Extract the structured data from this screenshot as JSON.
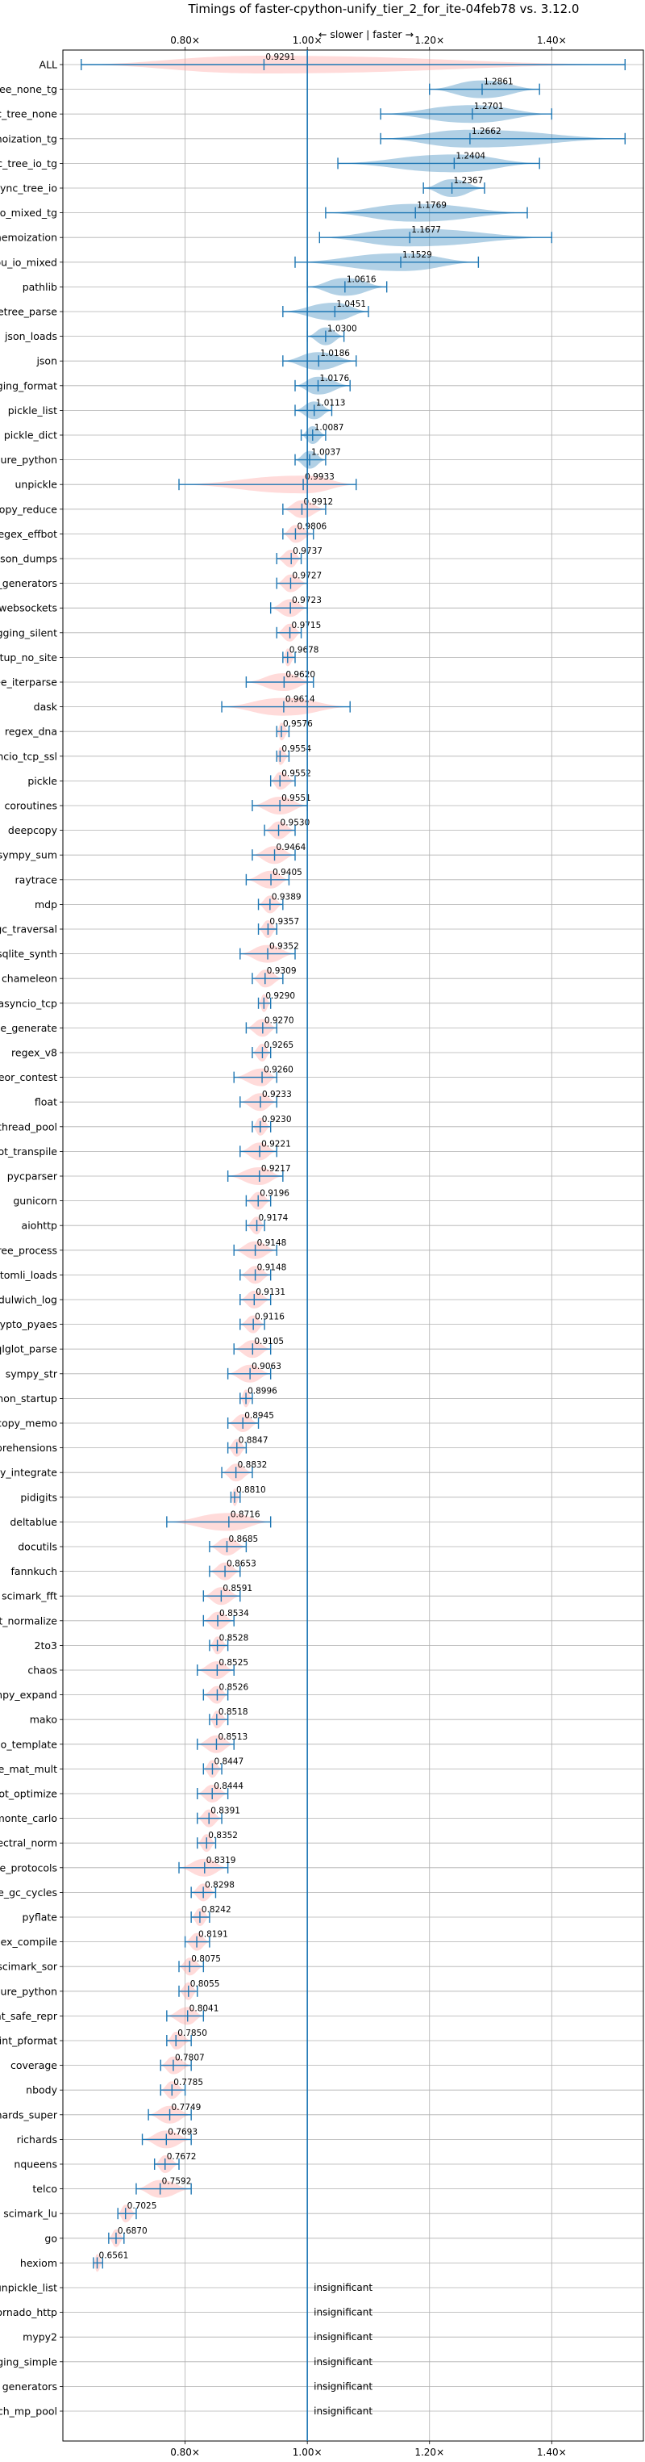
{
  "chart_data": {
    "type": "violin",
    "title": "Timings of faster-cpython-unify_tier_2_for_ite-04feb78 vs. 3.12.0",
    "direction_label": "← slower | faster →",
    "xlim": [
      0.6,
      1.55
    ],
    "x_ticks": [
      {
        "value": 0.8,
        "label": "0.80×"
      },
      {
        "value": 1.0,
        "label": "1.00×"
      },
      {
        "value": 1.2,
        "label": "1.20×"
      },
      {
        "value": 1.4,
        "label": "1.40×"
      }
    ],
    "grid": true,
    "colors": {
      "faster": "#1f77b4",
      "slower": "#ff9896",
      "line": "#1f77b4",
      "axis": "#000000"
    },
    "benchmarks": [
      {
        "name": "ALL",
        "mean": 0.9291,
        "lo": 0.63,
        "hi": 1.52
      },
      {
        "name": "async_tree_none_tg",
        "mean": 1.2861,
        "lo": 1.2,
        "hi": 1.38
      },
      {
        "name": "async_tree_none",
        "mean": 1.2701,
        "lo": 1.12,
        "hi": 1.4
      },
      {
        "name": "async_tree_memoization_tg",
        "mean": 1.2662,
        "lo": 1.12,
        "hi": 1.52
      },
      {
        "name": "async_tree_io_tg",
        "mean": 1.2404,
        "lo": 1.05,
        "hi": 1.38
      },
      {
        "name": "async_tree_io",
        "mean": 1.2367,
        "lo": 1.19,
        "hi": 1.29
      },
      {
        "name": "async_tree_cpu_io_mixed_tg",
        "mean": 1.1769,
        "lo": 1.03,
        "hi": 1.36
      },
      {
        "name": "async_tree_memoization",
        "mean": 1.1677,
        "lo": 1.02,
        "hi": 1.4
      },
      {
        "name": "async_tree_cpu_io_mixed",
        "mean": 1.1529,
        "lo": 0.98,
        "hi": 1.28
      },
      {
        "name": "pathlib",
        "mean": 1.0616,
        "lo": 1.0,
        "hi": 1.13
      },
      {
        "name": "xml_etree_parse",
        "mean": 1.0451,
        "lo": 0.96,
        "hi": 1.1
      },
      {
        "name": "json_loads",
        "mean": 1.03,
        "lo": 1.0,
        "hi": 1.06
      },
      {
        "name": "json",
        "mean": 1.0186,
        "lo": 0.96,
        "hi": 1.08
      },
      {
        "name": "logging_format",
        "mean": 1.0176,
        "lo": 0.98,
        "hi": 1.07
      },
      {
        "name": "pickle_list",
        "mean": 1.0113,
        "lo": 0.98,
        "hi": 1.04
      },
      {
        "name": "pickle_dict",
        "mean": 1.0087,
        "lo": 0.99,
        "hi": 1.03
      },
      {
        "name": "pickle_pure_python",
        "mean": 1.0037,
        "lo": 0.98,
        "hi": 1.03
      },
      {
        "name": "unpickle",
        "mean": 0.9933,
        "lo": 0.79,
        "hi": 1.08
      },
      {
        "name": "deepcopy_reduce",
        "mean": 0.9912,
        "lo": 0.96,
        "hi": 1.03
      },
      {
        "name": "regex_effbot",
        "mean": 0.9806,
        "lo": 0.96,
        "hi": 1.01
      },
      {
        "name": "json_dumps",
        "mean": 0.9737,
        "lo": 0.95,
        "hi": 0.99
      },
      {
        "name": "async_generators",
        "mean": 0.9727,
        "lo": 0.95,
        "hi": 1.0
      },
      {
        "name": "asyncio_websockets",
        "mean": 0.9723,
        "lo": 0.94,
        "hi": 1.0
      },
      {
        "name": "logging_silent",
        "mean": 0.9715,
        "lo": 0.95,
        "hi": 0.99
      },
      {
        "name": "python_startup_no_site",
        "mean": 0.9678,
        "lo": 0.96,
        "hi": 0.98
      },
      {
        "name": "xml_etree_iterparse",
        "mean": 0.962,
        "lo": 0.9,
        "hi": 1.01
      },
      {
        "name": "dask",
        "mean": 0.9614,
        "lo": 0.86,
        "hi": 1.07
      },
      {
        "name": "regex_dna",
        "mean": 0.9576,
        "lo": 0.95,
        "hi": 0.97
      },
      {
        "name": "asyncio_tcp_ssl",
        "mean": 0.9554,
        "lo": 0.95,
        "hi": 0.97
      },
      {
        "name": "pickle",
        "mean": 0.9552,
        "lo": 0.94,
        "hi": 0.98
      },
      {
        "name": "coroutines",
        "mean": 0.9551,
        "lo": 0.91,
        "hi": 1.0
      },
      {
        "name": "deepcopy",
        "mean": 0.953,
        "lo": 0.93,
        "hi": 0.98
      },
      {
        "name": "sympy_sum",
        "mean": 0.9464,
        "lo": 0.91,
        "hi": 0.98
      },
      {
        "name": "raytrace",
        "mean": 0.9405,
        "lo": 0.9,
        "hi": 0.97
      },
      {
        "name": "mdp",
        "mean": 0.9389,
        "lo": 0.92,
        "hi": 0.96
      },
      {
        "name": "gc_traversal",
        "mean": 0.9357,
        "lo": 0.92,
        "hi": 0.95
      },
      {
        "name": "sqlite_synth",
        "mean": 0.9352,
        "lo": 0.89,
        "hi": 0.98
      },
      {
        "name": "chameleon",
        "mean": 0.9309,
        "lo": 0.91,
        "hi": 0.96
      },
      {
        "name": "asyncio_tcp",
        "mean": 0.929,
        "lo": 0.92,
        "hi": 0.94
      },
      {
        "name": "xml_etree_generate",
        "mean": 0.927,
        "lo": 0.9,
        "hi": 0.95
      },
      {
        "name": "regex_v8",
        "mean": 0.9265,
        "lo": 0.91,
        "hi": 0.94
      },
      {
        "name": "meteor_contest",
        "mean": 0.926,
        "lo": 0.88,
        "hi": 0.95
      },
      {
        "name": "float",
        "mean": 0.9233,
        "lo": 0.89,
        "hi": 0.95
      },
      {
        "name": "bench_thread_pool",
        "mean": 0.923,
        "lo": 0.91,
        "hi": 0.94
      },
      {
        "name": "sqlglot_transpile",
        "mean": 0.9221,
        "lo": 0.89,
        "hi": 0.95
      },
      {
        "name": "pycparser",
        "mean": 0.9217,
        "lo": 0.87,
        "hi": 0.96
      },
      {
        "name": "gunicorn",
        "mean": 0.9196,
        "lo": 0.9,
        "hi": 0.94
      },
      {
        "name": "aiohttp",
        "mean": 0.9174,
        "lo": 0.9,
        "hi": 0.93
      },
      {
        "name": "xml_etree_process",
        "mean": 0.9148,
        "lo": 0.88,
        "hi": 0.95
      },
      {
        "name": "tomli_loads",
        "mean": 0.9148,
        "lo": 0.89,
        "hi": 0.94
      },
      {
        "name": "dulwich_log",
        "mean": 0.9131,
        "lo": 0.89,
        "hi": 0.94
      },
      {
        "name": "crypto_pyaes",
        "mean": 0.9116,
        "lo": 0.89,
        "hi": 0.93
      },
      {
        "name": "sqlglot_parse",
        "mean": 0.9105,
        "lo": 0.88,
        "hi": 0.94
      },
      {
        "name": "sympy_str",
        "mean": 0.9063,
        "lo": 0.87,
        "hi": 0.94
      },
      {
        "name": "python_startup",
        "mean": 0.8996,
        "lo": 0.89,
        "hi": 0.91
      },
      {
        "name": "deepcopy_memo",
        "mean": 0.8945,
        "lo": 0.87,
        "hi": 0.92
      },
      {
        "name": "comprehensions",
        "mean": 0.8847,
        "lo": 0.87,
        "hi": 0.9
      },
      {
        "name": "sympy_integrate",
        "mean": 0.8832,
        "lo": 0.86,
        "hi": 0.91
      },
      {
        "name": "pidigits",
        "mean": 0.881,
        "lo": 0.875,
        "hi": 0.89
      },
      {
        "name": "deltablue",
        "mean": 0.8716,
        "lo": 0.77,
        "hi": 0.94
      },
      {
        "name": "docutils",
        "mean": 0.8685,
        "lo": 0.84,
        "hi": 0.9
      },
      {
        "name": "fannkuch",
        "mean": 0.8653,
        "lo": 0.84,
        "hi": 0.89
      },
      {
        "name": "scimark_fft",
        "mean": 0.8591,
        "lo": 0.83,
        "hi": 0.89
      },
      {
        "name": "sqlglot_normalize",
        "mean": 0.8534,
        "lo": 0.83,
        "hi": 0.88
      },
      {
        "name": "2to3",
        "mean": 0.8528,
        "lo": 0.84,
        "hi": 0.87
      },
      {
        "name": "chaos",
        "mean": 0.8525,
        "lo": 0.82,
        "hi": 0.88
      },
      {
        "name": "sympy_expand",
        "mean": 0.8526,
        "lo": 0.83,
        "hi": 0.87
      },
      {
        "name": "mako",
        "mean": 0.8518,
        "lo": 0.84,
        "hi": 0.87
      },
      {
        "name": "django_template",
        "mean": 0.8513,
        "lo": 0.82,
        "hi": 0.88
      },
      {
        "name": "scimark_sparse_mat_mult",
        "mean": 0.8447,
        "lo": 0.83,
        "hi": 0.86
      },
      {
        "name": "sqlglot_optimize",
        "mean": 0.8444,
        "lo": 0.82,
        "hi": 0.87
      },
      {
        "name": "scimark_monte_carlo",
        "mean": 0.8391,
        "lo": 0.82,
        "hi": 0.86
      },
      {
        "name": "spectral_norm",
        "mean": 0.8352,
        "lo": 0.82,
        "hi": 0.85
      },
      {
        "name": "typing_runtime_protocols",
        "mean": 0.8319,
        "lo": 0.79,
        "hi": 0.87
      },
      {
        "name": "create_gc_cycles",
        "mean": 0.8298,
        "lo": 0.81,
        "hi": 0.85
      },
      {
        "name": "pyflate",
        "mean": 0.8242,
        "lo": 0.81,
        "hi": 0.84
      },
      {
        "name": "regex_compile",
        "mean": 0.8191,
        "lo": 0.8,
        "hi": 0.84
      },
      {
        "name": "scimark_sor",
        "mean": 0.8075,
        "lo": 0.79,
        "hi": 0.83
      },
      {
        "name": "unpickle_pure_python",
        "mean": 0.8055,
        "lo": 0.79,
        "hi": 0.82
      },
      {
        "name": "pprint_safe_repr",
        "mean": 0.8041,
        "lo": 0.77,
        "hi": 0.83
      },
      {
        "name": "pprint_pformat",
        "mean": 0.785,
        "lo": 0.77,
        "hi": 0.81
      },
      {
        "name": "coverage",
        "mean": 0.7807,
        "lo": 0.76,
        "hi": 0.81
      },
      {
        "name": "nbody",
        "mean": 0.7785,
        "lo": 0.76,
        "hi": 0.8
      },
      {
        "name": "richards_super",
        "mean": 0.7749,
        "lo": 0.74,
        "hi": 0.81
      },
      {
        "name": "richards",
        "mean": 0.7693,
        "lo": 0.73,
        "hi": 0.81
      },
      {
        "name": "nqueens",
        "mean": 0.7672,
        "lo": 0.75,
        "hi": 0.79
      },
      {
        "name": "telco",
        "mean": 0.7592,
        "lo": 0.72,
        "hi": 0.81
      },
      {
        "name": "scimark_lu",
        "mean": 0.7025,
        "lo": 0.69,
        "hi": 0.72
      },
      {
        "name": "go",
        "mean": 0.687,
        "lo": 0.675,
        "hi": 0.7
      },
      {
        "name": "hexiom",
        "mean": 0.6561,
        "lo": 0.65,
        "hi": 0.665
      },
      {
        "name": "unpickle_list",
        "insignificant": true
      },
      {
        "name": "tornado_http",
        "insignificant": true
      },
      {
        "name": "mypy2",
        "insignificant": true
      },
      {
        "name": "logging_simple",
        "insignificant": true
      },
      {
        "name": "generators",
        "insignificant": true
      },
      {
        "name": "bench_mp_pool",
        "insignificant": true
      }
    ],
    "insignificant_label": "insignificant"
  }
}
